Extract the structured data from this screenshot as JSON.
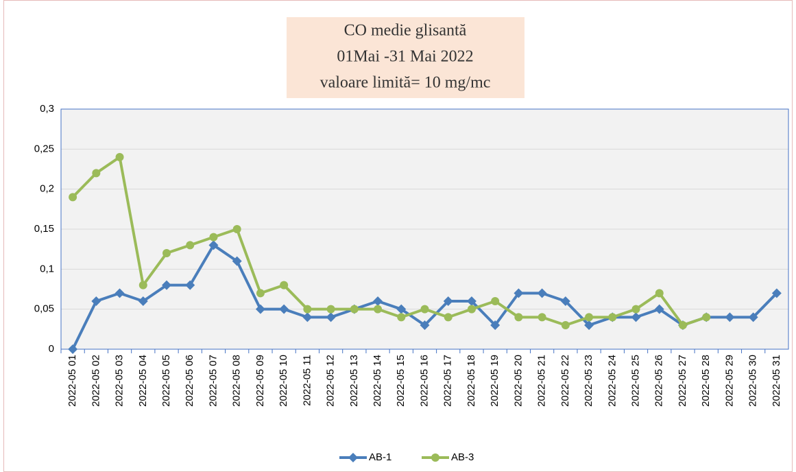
{
  "chart_data": {
    "type": "line",
    "title": [
      "CO medie glisantă",
      "01Mai -31 Mai  2022",
      "valoare limită= 10 mg/mc"
    ],
    "categories": [
      "2022-05 01",
      "2022-05 02",
      "2022-05 03",
      "2022-05 04",
      "2022-05 05",
      "2022-05 06",
      "2022-05 07",
      "2022-05 08",
      "2022-05 09",
      "2022-05 10",
      "2022-05 11",
      "2022-05 12",
      "2022-05 13",
      "2022-05 14",
      "2022-05 15",
      "2022-05 16",
      "2022-05 17",
      "2022-05 18",
      "2022-05 19",
      "2022-05 20",
      "2022-05 21",
      "2022-05 22",
      "2022-05 23",
      "2022-05 24",
      "2022-05 25",
      "2022-05 26",
      "2022-05 27",
      "2022-05 28",
      "2022-05 29",
      "2022-05 30",
      "2022-05 31"
    ],
    "series": [
      {
        "name": "AB-1",
        "color": "#4a7ebb",
        "marker": "diamond",
        "values": [
          0,
          0.06,
          0.07,
          0.06,
          0.08,
          0.08,
          0.13,
          0.11,
          0.05,
          0.05,
          0.04,
          0.04,
          0.05,
          0.06,
          0.05,
          0.03,
          0.06,
          0.06,
          0.03,
          0.07,
          0.07,
          0.06,
          0.03,
          0.04,
          0.04,
          0.05,
          0.03,
          0.04,
          0.04,
          0.04,
          0.07
        ]
      },
      {
        "name": "AB-3",
        "color": "#9bbb59",
        "marker": "circle",
        "values": [
          0.19,
          0.22,
          0.24,
          0.08,
          0.12,
          0.13,
          0.14,
          0.15,
          0.07,
          0.08,
          0.05,
          0.05,
          0.05,
          0.05,
          0.04,
          0.05,
          0.04,
          0.05,
          0.06,
          0.04,
          0.04,
          0.03,
          0.04,
          0.04,
          0.05,
          0.07,
          0.03,
          0.04,
          null,
          null,
          null
        ]
      }
    ],
    "ylim": [
      0,
      0.3
    ],
    "yticks": [
      0,
      {
        "value": 0.05,
        "label": "0,05"
      },
      {
        "value": 0.1,
        "label": "0,1"
      },
      {
        "value": 0.15,
        "label": "0,15"
      },
      {
        "value": 0.2,
        "label": "0,2"
      },
      {
        "value": 0.25,
        "label": "0,25"
      },
      {
        "value": 0.3,
        "label": "0,3"
      }
    ],
    "grid": true,
    "legend": "bottom"
  }
}
